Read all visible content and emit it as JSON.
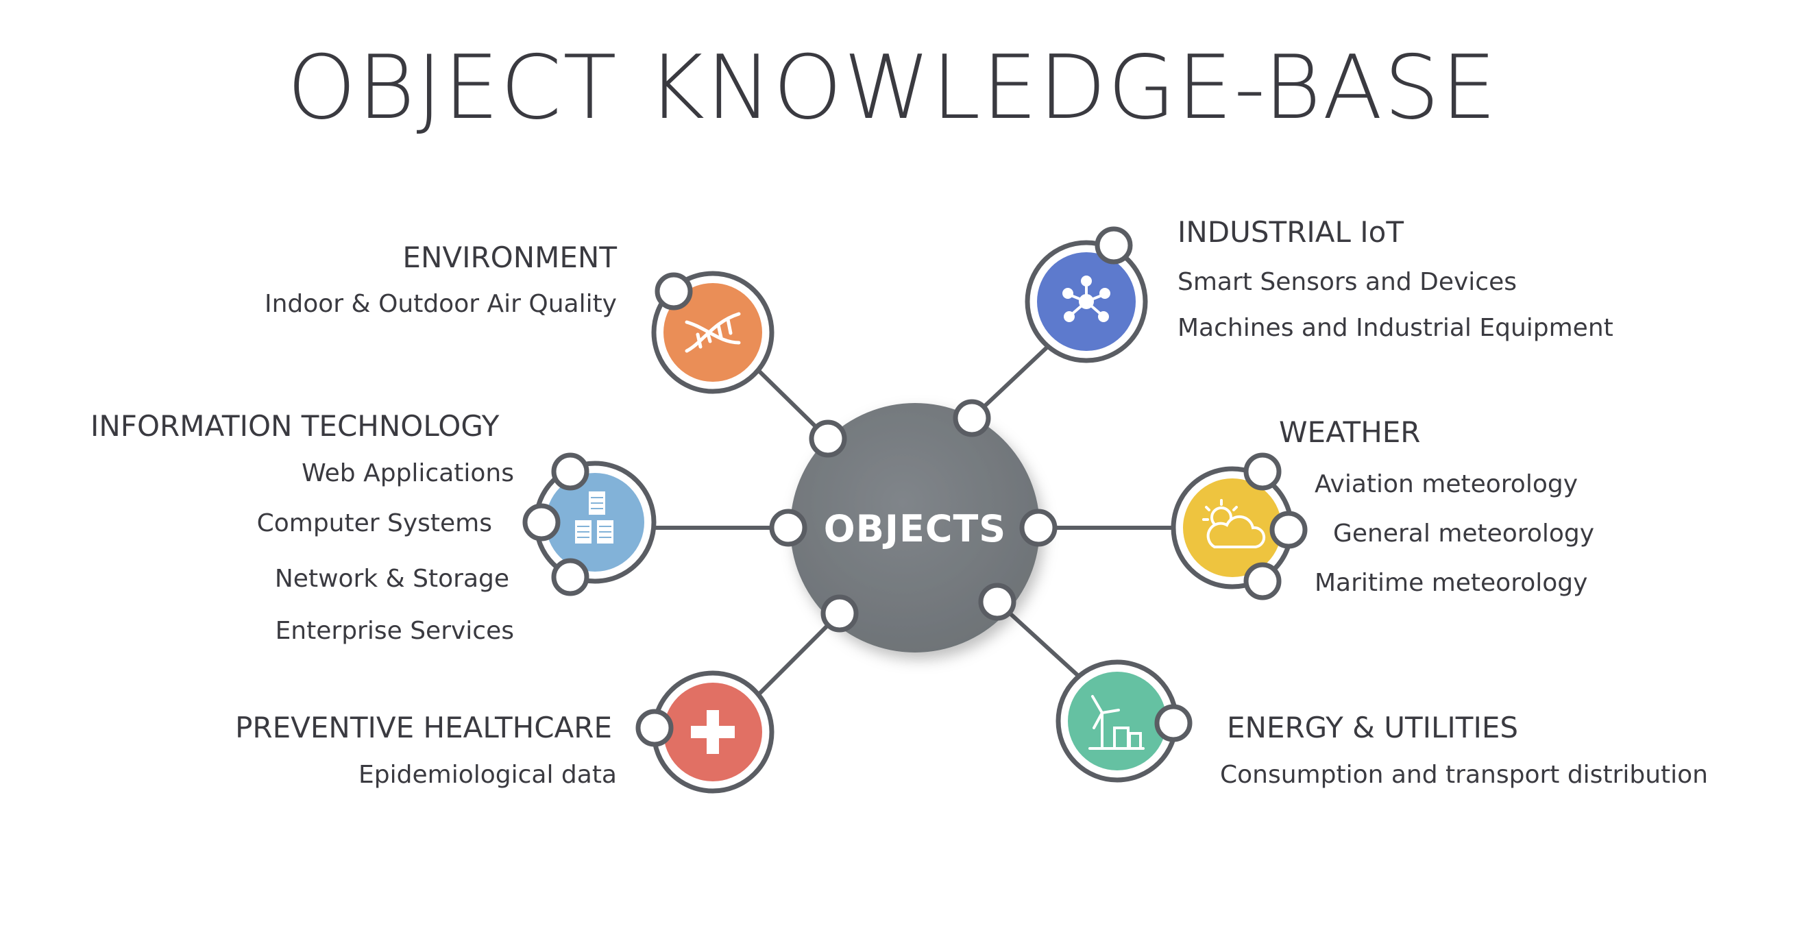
{
  "title": "OBJECT KNOWLEDGE-BASE",
  "center": {
    "label": "OBJECTS",
    "color": "#757a7e"
  },
  "categories": {
    "environment": {
      "heading": "ENVIRONMENT",
      "items": [
        "Indoor & Outdoor Air Quality"
      ],
      "color": "#ea8e57",
      "icon": "dna-icon"
    },
    "information_technology": {
      "heading": "INFORMATION  TECHNOLOGY",
      "items": [
        "Web Applications",
        "Computer Systems",
        "Network & Storage",
        "Enterprise Services"
      ],
      "color": "#82b2d8",
      "icon": "servers-icon"
    },
    "preventive_healthcare": {
      "heading": "PREVENTIVE HEALTHCARE",
      "items": [
        "Epidemiological data"
      ],
      "color": "#e17064",
      "icon": "plus-icon"
    },
    "industrial_iot": {
      "heading": "INDUSTRIAL IoT",
      "items": [
        "Smart Sensors and Devices",
        "Machines and Industrial Equipment"
      ],
      "color": "#5d7acd",
      "icon": "network-node-icon"
    },
    "weather": {
      "heading": "WEATHER",
      "items": [
        "Aviation meteorology",
        "General meteorology",
        "Maritime meteorology"
      ],
      "color": "#eec43f",
      "icon": "sun-cloud-icon"
    },
    "energy_utilities": {
      "heading": "ENERGY & UTILITIES",
      "items": [
        "Consumption and transport distribution"
      ],
      "color": "#65c1a2",
      "icon": "wind-turbine-icon"
    }
  }
}
